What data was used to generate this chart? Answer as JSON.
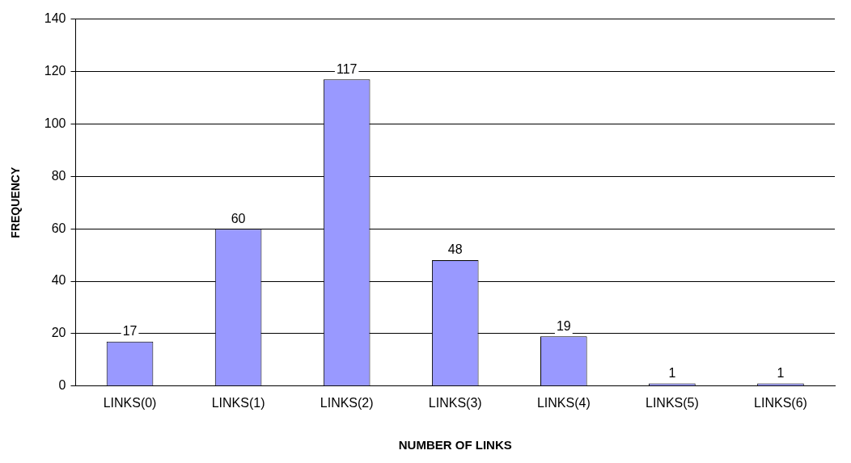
{
  "chart_data": {
    "type": "bar",
    "xlabel": "NUMBER OF LINKS",
    "ylabel": "FREQUENCY",
    "categories": [
      "LINKS(0)",
      "LINKS(1)",
      "LINKS(2)",
      "LINKS(3)",
      "LINKS(4)",
      "LINKS(5)",
      "LINKS(6)"
    ],
    "values": [
      17,
      60,
      117,
      48,
      19,
      1,
      1
    ],
    "color": "#9999ff",
    "ylim": [
      0,
      140
    ],
    "yticks": [
      0,
      20,
      40,
      60,
      80,
      100,
      120,
      140
    ],
    "grid": "y",
    "legend": false,
    "data_labels": true
  }
}
